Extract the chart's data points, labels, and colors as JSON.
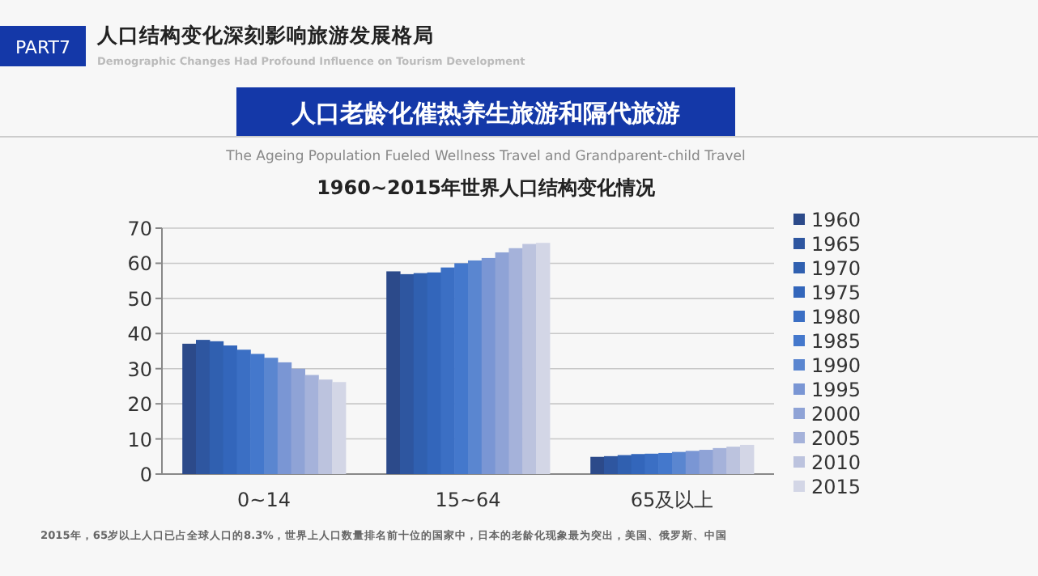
{
  "chart_data": {
    "type": "bar",
    "title": "1960~2015年世界人口结构变化情况",
    "annotations": [
      "PART7",
      "人口结构变化深刻影响旅游发展格局",
      "Demographic Changes Had Profound Influence on Tourism Development",
      "人口老龄化催热养生旅游和隔代旅游",
      "The Ageing Population Fueled Wellness Travel and Grandparent-child Travel",
      "2015年，65岁以上人口已占全球人口的8.3%，世界上人口数量排名前十位的国家中，日本的老龄化现象最为突出，美国、俄罗斯、中国"
    ],
    "categories": [
      "0~14",
      "15~64",
      "65及以上"
    ],
    "ylim": [
      0,
      70
    ],
    "yticks": [
      0,
      10,
      20,
      30,
      40,
      50,
      60,
      70
    ],
    "grid": "y",
    "legend": "right",
    "series": [
      {
        "name": "1960",
        "color": "#2c4a8a",
        "values": [
          37.1,
          57.7,
          4.9
        ]
      },
      {
        "name": "1965",
        "color": "#2e56a0",
        "values": [
          38.2,
          56.9,
          5.1
        ]
      },
      {
        "name": "1970",
        "color": "#3060b0",
        "values": [
          37.8,
          57.2,
          5.4
        ]
      },
      {
        "name": "1975",
        "color": "#3366bb",
        "values": [
          36.6,
          57.4,
          5.7
        ]
      },
      {
        "name": "1980",
        "color": "#3b6fc4",
        "values": [
          35.4,
          58.8,
          5.8
        ]
      },
      {
        "name": "1985",
        "color": "#4478cc",
        "values": [
          34.2,
          60.0,
          6.0
        ]
      },
      {
        "name": "1990",
        "color": "#5a86d0",
        "values": [
          33.1,
          60.8,
          6.3
        ]
      },
      {
        "name": "1995",
        "color": "#7a96d4",
        "values": [
          31.8,
          61.5,
          6.6
        ]
      },
      {
        "name": "2000",
        "color": "#8fa3d6",
        "values": [
          30.0,
          63.1,
          6.9
        ]
      },
      {
        "name": "2005",
        "color": "#a5b2da",
        "values": [
          28.2,
          64.3,
          7.4
        ]
      },
      {
        "name": "2010",
        "color": "#bcc3de",
        "values": [
          26.9,
          65.5,
          7.8
        ]
      },
      {
        "name": "2015",
        "color": "#d3d6e6",
        "values": [
          26.2,
          65.8,
          8.3
        ]
      }
    ]
  }
}
